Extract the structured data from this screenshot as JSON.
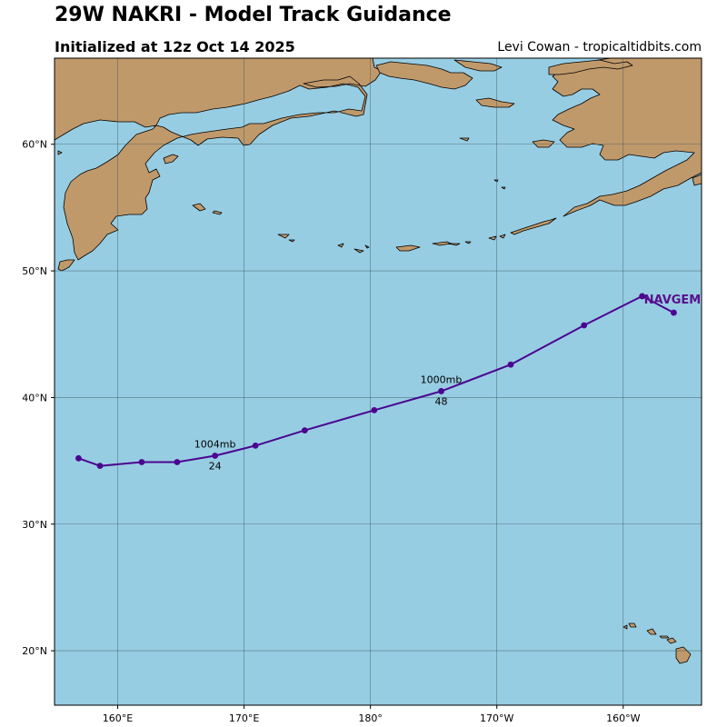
{
  "header": {
    "title": "29W NAKRI - Model Track Guidance",
    "subtitle": "Initialized at 12z Oct 14 2025",
    "credit": "Levi Cowan - tropicaltidbits.com"
  },
  "colors": {
    "ocean": "#97cde2",
    "land": "#c0996b",
    "track": "#4b0590",
    "track_label": "#5a0f8c"
  },
  "map": {
    "projection": "plate-carree",
    "lon_range": [
      155,
      206.2
    ],
    "lat_range": [
      15.7,
      66.8
    ],
    "lon_ticks": [
      {
        "lon": 160,
        "label": "160°E"
      },
      {
        "lon": 170,
        "label": "170°E"
      },
      {
        "lon": 180,
        "label": "180°"
      },
      {
        "lon": 190,
        "label": "170°W"
      },
      {
        "lon": 200,
        "label": "160°W"
      }
    ],
    "lat_ticks": [
      {
        "lat": 20,
        "label": "20°N"
      },
      {
        "lat": 30,
        "label": "30°N"
      },
      {
        "lat": 40,
        "label": "40°N"
      },
      {
        "lat": 50,
        "label": "50°N"
      },
      {
        "lat": 60,
        "label": "60°N"
      }
    ],
    "land_regions": [
      "Kamchatka",
      "Chukotka / Russian Far East",
      "Alaska",
      "Aleutian Islands",
      "Commander Islands",
      "Hawaiian Islands"
    ]
  },
  "chart_data": {
    "type": "line",
    "title": "29W NAKRI - Model Track Guidance",
    "series": [
      {
        "name": "NAVGEM",
        "points": [
          {
            "lon": 156.9,
            "lat": 35.2
          },
          {
            "lon": 158.6,
            "lat": 34.6
          },
          {
            "lon": 161.9,
            "lat": 34.9
          },
          {
            "lon": 164.7,
            "lat": 34.9
          },
          {
            "lon": 167.7,
            "lat": 35.4
          },
          {
            "lon": 170.9,
            "lat": 36.2
          },
          {
            "lon": 174.8,
            "lat": 37.4
          },
          {
            "lon": 180.3,
            "lat": 39.0
          },
          {
            "lon": 185.6,
            "lat": 40.5
          },
          {
            "lon": 191.1,
            "lat": 42.6
          },
          {
            "lon": 196.9,
            "lat": 45.7
          },
          {
            "lon": 201.5,
            "lat": 48.0
          },
          {
            "lon": 204.0,
            "lat": 46.7
          }
        ]
      }
    ],
    "annotations": [
      {
        "lon": 167.7,
        "lat": 35.4,
        "pressure": "1004mb",
        "hour": "24"
      },
      {
        "lon": 185.6,
        "lat": 40.5,
        "pressure": "1000mb",
        "hour": "48"
      }
    ]
  }
}
